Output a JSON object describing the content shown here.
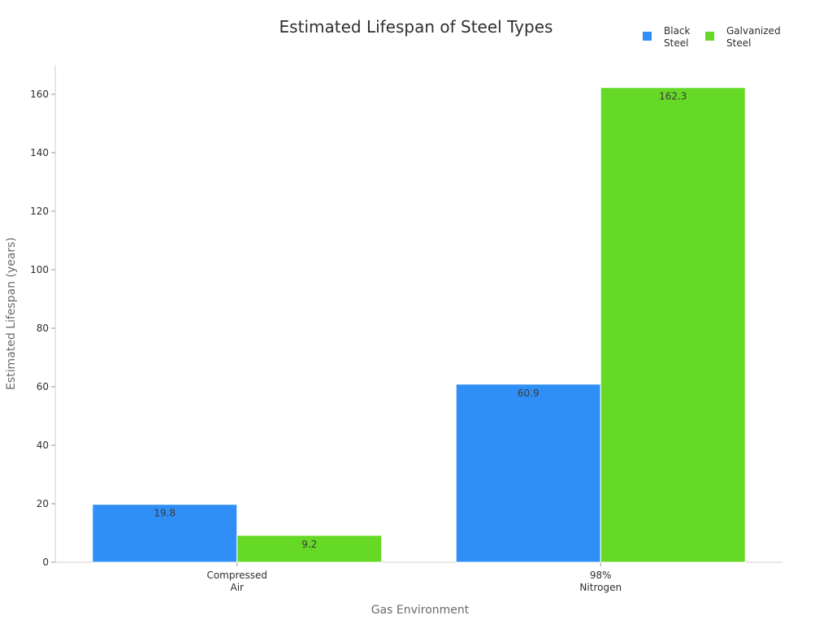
{
  "chart_data": {
    "type": "bar",
    "title": "Estimated Lifespan of Steel Types",
    "xlabel": "Gas Environment",
    "ylabel": "Estimated Lifespan (years)",
    "categories": [
      [
        "Compressed",
        "Air"
      ],
      [
        "98%",
        "Nitrogen"
      ]
    ],
    "series": [
      {
        "name": [
          "Black",
          "Steel"
        ],
        "color": "#2f8ff7",
        "values": [
          19.8,
          60.9
        ]
      },
      {
        "name": [
          "Galvanized",
          "Steel"
        ],
        "color": "#66d926",
        "values": [
          9.2,
          162.3
        ]
      }
    ],
    "ylim": [
      0,
      170
    ],
    "yticks": [
      0,
      20,
      40,
      60,
      80,
      100,
      120,
      140,
      160
    ],
    "grid": false,
    "legend_position": "top-right"
  }
}
